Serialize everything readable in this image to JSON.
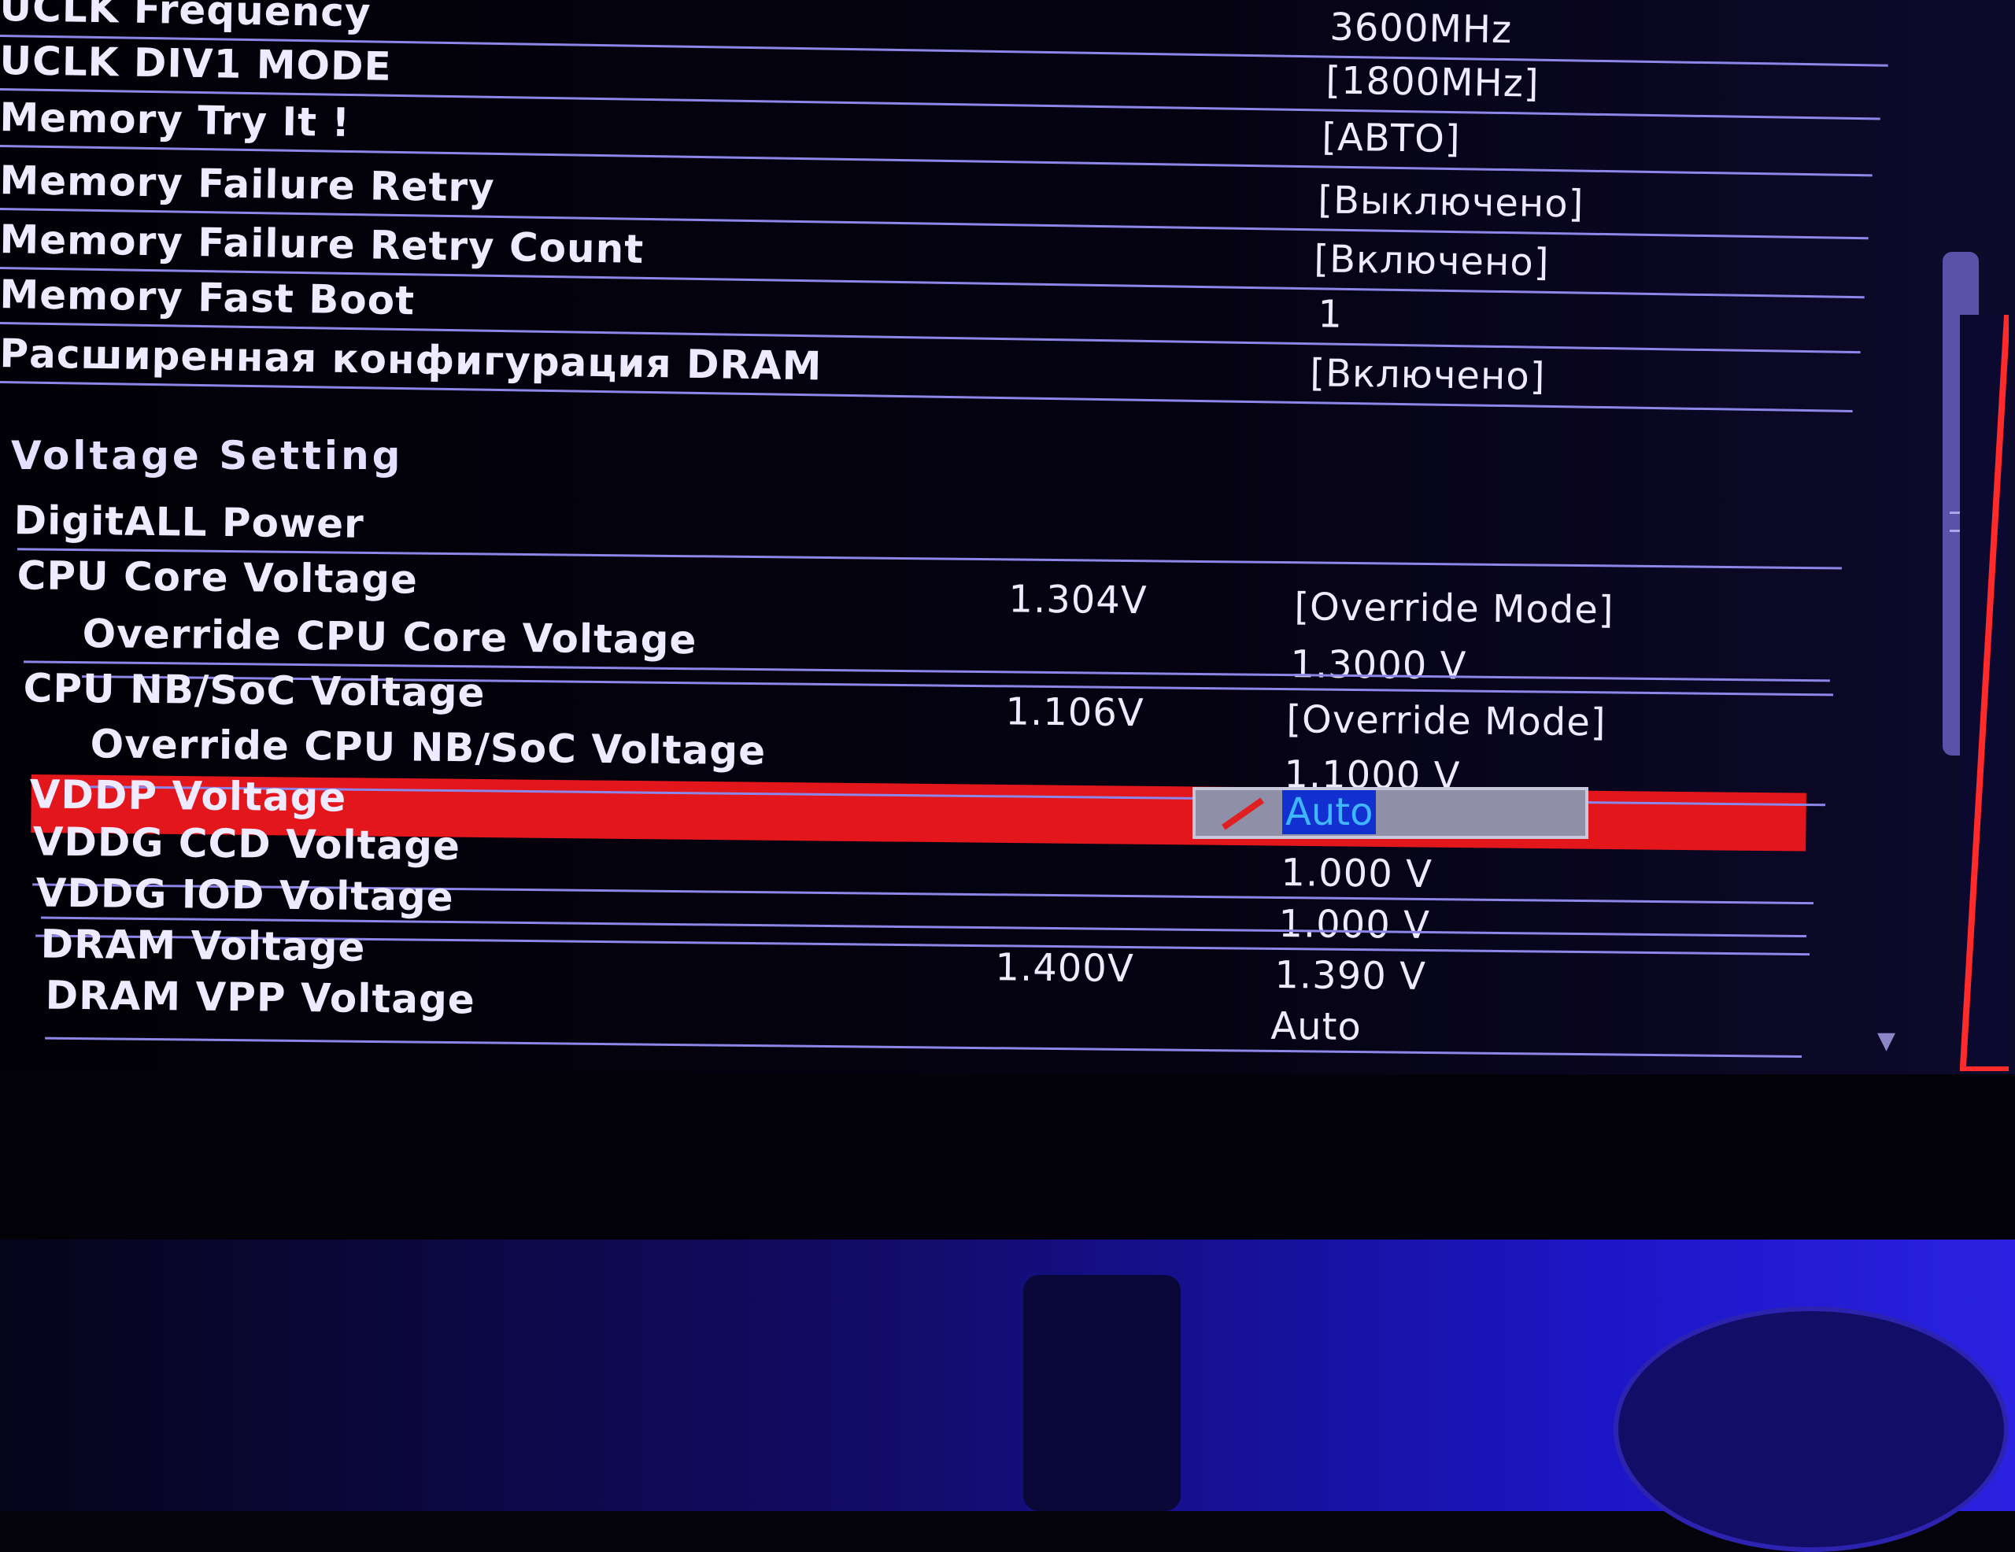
{
  "settings": [
    {
      "label": "UCLK Frequency",
      "value": "3600MHz"
    },
    {
      "label": "UCLK DIV1 MODE",
      "value": "[1800MHz]"
    },
    {
      "label": "Memory Try It !",
      "value": "[АВТО]"
    },
    {
      "label": "Memory Failure Retry",
      "value": "[Выключено]"
    },
    {
      "label": "Memory Failure Retry Count",
      "value": "[Включено]"
    },
    {
      "label": "Memory Fast Boot",
      "value": "1"
    },
    {
      "label": "Расширенная конфигурация DRAM",
      "value": "[Включено]"
    }
  ],
  "voltage_section": {
    "title": "Voltage  Setting",
    "items": [
      {
        "label": "DigitALL Power",
        "current": "",
        "value": ""
      },
      {
        "label": "CPU Core Voltage",
        "current": "1.304V",
        "value": "[Override Mode]"
      },
      {
        "label": "Override CPU Core Voltage",
        "current": "",
        "value": "1.3000 V"
      },
      {
        "label": "CPU NB/SoC Voltage",
        "current": "1.106V",
        "value": "[Override Mode]"
      },
      {
        "label": "Override CPU NB/SoC Voltage",
        "current": "",
        "value": "1.1000 V"
      },
      {
        "label": "VDDP Voltage",
        "current": "",
        "value": "Auto",
        "selected": true
      },
      {
        "label": "VDDG CCD Voltage",
        "current": "",
        "value": "1.000 V"
      },
      {
        "label": "VDDG IOD Voltage",
        "current": "",
        "value": "1.000 V"
      },
      {
        "label": "DRAM Voltage",
        "current": "1.400V",
        "value": "1.390 V"
      },
      {
        "label": "DRAM VPP Voltage",
        "current": "",
        "value": "Auto"
      }
    ]
  },
  "colors": {
    "selection": "#e3161c",
    "text": "#eeeaff",
    "edit_highlight": "#1230d0"
  },
  "icons": {
    "edit": "pencil-icon",
    "scroll_down": "triangle-down-icon"
  }
}
